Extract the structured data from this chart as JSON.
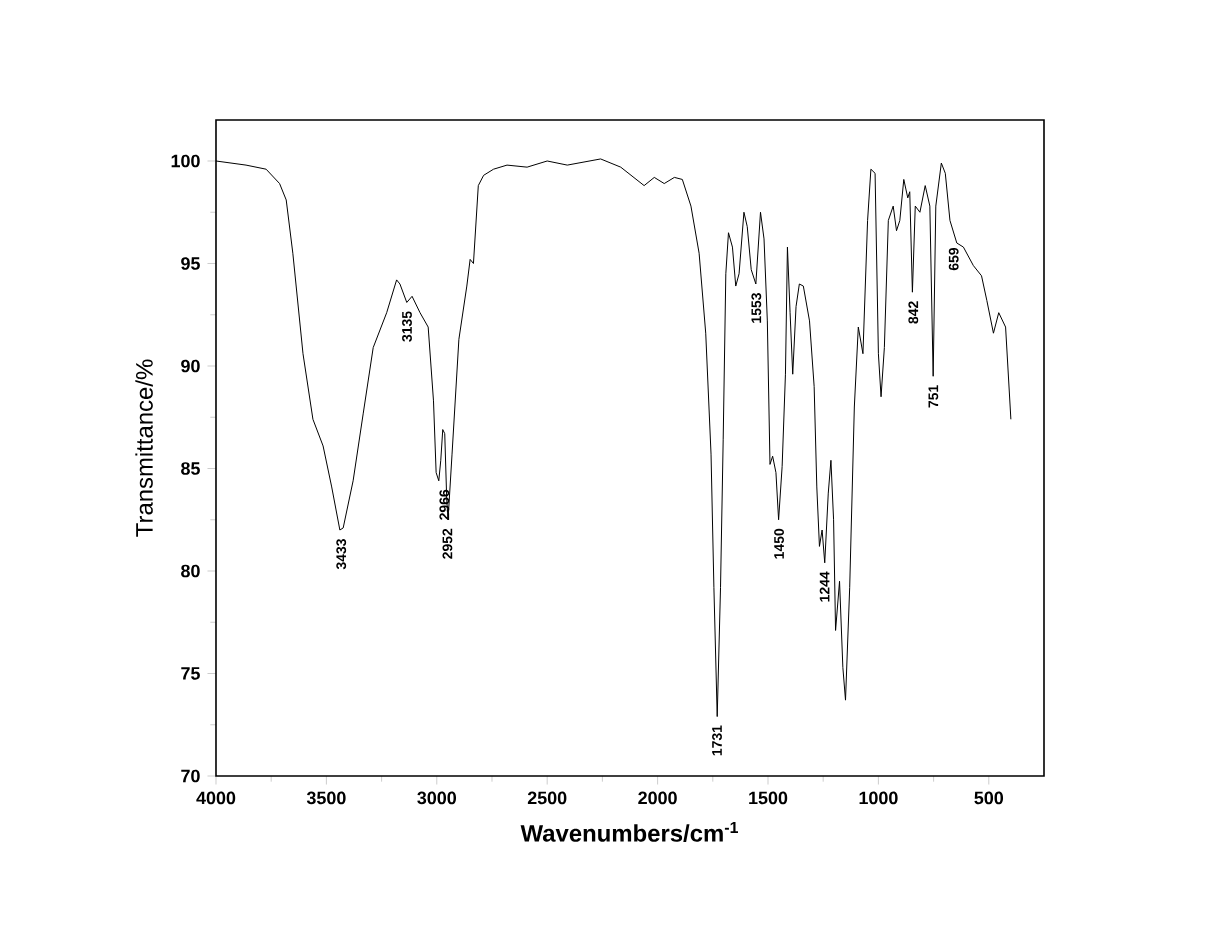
{
  "chart_data": {
    "type": "line",
    "xlabel": "Wavenumbers/cm$^{-1}$",
    "ylabel": "Transmittance/%",
    "xlim": [
      4000,
      250
    ],
    "ylim": [
      70,
      102
    ],
    "xticks": [
      4000,
      3500,
      3000,
      2500,
      2000,
      1500,
      1000,
      500
    ],
    "yticks": [
      70,
      75,
      80,
      85,
      90,
      95,
      100
    ],
    "series": [
      {
        "color": "#000000",
        "x": [
          4000,
          3864,
          3773,
          3712,
          3682,
          3652,
          3606,
          3561,
          3515,
          3476,
          3439,
          3424,
          3379,
          3333,
          3288,
          3227,
          3182,
          3167,
          3136,
          3112,
          3076,
          3039,
          3015,
          3003,
          2991,
          2982,
          2973,
          2964,
          2955,
          2949,
          2931,
          2900,
          2864,
          2849,
          2834,
          2812,
          2788,
          2743,
          2682,
          2591,
          2500,
          2409,
          2258,
          2167,
          2061,
          2015,
          1970,
          1924,
          1888,
          1849,
          1812,
          1782,
          1758,
          1745,
          1730,
          1715,
          1703,
          1691,
          1679,
          1661,
          1646,
          1631,
          1609,
          1594,
          1576,
          1555,
          1534,
          1518,
          1503,
          1491,
          1479,
          1464,
          1452,
          1436,
          1421,
          1412,
          1400,
          1388,
          1373,
          1358,
          1340,
          1312,
          1291,
          1279,
          1267,
          1255,
          1243,
          1227,
          1215,
          1203,
          1194,
          1176,
          1161,
          1149,
          1130,
          1109,
          1091,
          1070,
          1049,
          1034,
          1015,
          1000,
          988,
          973,
          955,
          933,
          918,
          903,
          885,
          867,
          858,
          846,
          833,
          812,
          788,
          767,
          752,
          740,
          715,
          697,
          676,
          645,
          615,
          570,
          533,
          509,
          479,
          455,
          424,
          400
        ],
        "values": [
          100,
          99.8,
          99.6,
          98.9,
          98.1,
          95.5,
          90.6,
          87.4,
          86.1,
          84.1,
          82.0,
          82.1,
          84.4,
          87.7,
          90.9,
          92.6,
          94.2,
          94.0,
          93.1,
          93.4,
          92.6,
          91.9,
          88.3,
          84.8,
          84.4,
          85.4,
          86.9,
          86.7,
          83.5,
          82.5,
          85.7,
          91.3,
          93.9,
          95.2,
          95.0,
          98.8,
          99.3,
          99.6,
          99.8,
          99.7,
          100,
          99.8,
          100.1,
          99.7,
          98.8,
          99.2,
          98.9,
          99.2,
          99.1,
          97.8,
          95.5,
          91.6,
          85.7,
          79.2,
          72.9,
          79.2,
          86.4,
          94.5,
          96.5,
          95.8,
          93.9,
          94.5,
          97.5,
          96.8,
          94.7,
          94.0,
          97.5,
          96.2,
          92.2,
          85.2,
          85.6,
          84.8,
          82.5,
          85.1,
          89.6,
          95.8,
          92.6,
          89.6,
          92.9,
          94.0,
          93.9,
          92.2,
          89.0,
          84.1,
          81.2,
          82.0,
          80.4,
          83.8,
          85.4,
          82.5,
          77.1,
          79.5,
          75.3,
          73.7,
          79.2,
          88.0,
          91.9,
          90.6,
          97.1,
          99.6,
          99.4,
          90.6,
          88.5,
          90.9,
          97.1,
          97.8,
          96.6,
          97.1,
          99.1,
          98.2,
          98.5,
          93.6,
          97.8,
          97.5,
          98.8,
          97.8,
          89.5,
          97.8,
          99.9,
          99.4,
          97.1,
          96.0,
          95.8,
          94.9,
          94.4,
          93.2,
          91.6,
          92.6,
          91.9,
          87.4
        ]
      }
    ],
    "annotations": [
      {
        "text": "3433",
        "x": 3433,
        "y": 82.0
      },
      {
        "text": "3135",
        "x": 3135,
        "y": 93.1
      },
      {
        "text": "2966",
        "x": 2966,
        "y": 84.4
      },
      {
        "text": "2952",
        "x": 2952,
        "y": 82.5
      },
      {
        "text": "1731",
        "x": 1731,
        "y": 72.9
      },
      {
        "text": "1553",
        "x": 1553,
        "y": 94.0
      },
      {
        "text": "1450",
        "x": 1450,
        "y": 82.5
      },
      {
        "text": "1244",
        "x": 1244,
        "y": 80.4
      },
      {
        "text": "842",
        "x": 842,
        "y": 93.6
      },
      {
        "text": "751",
        "x": 751,
        "y": 89.5
      },
      {
        "text": "659",
        "x": 659,
        "y": 96.2
      }
    ]
  }
}
